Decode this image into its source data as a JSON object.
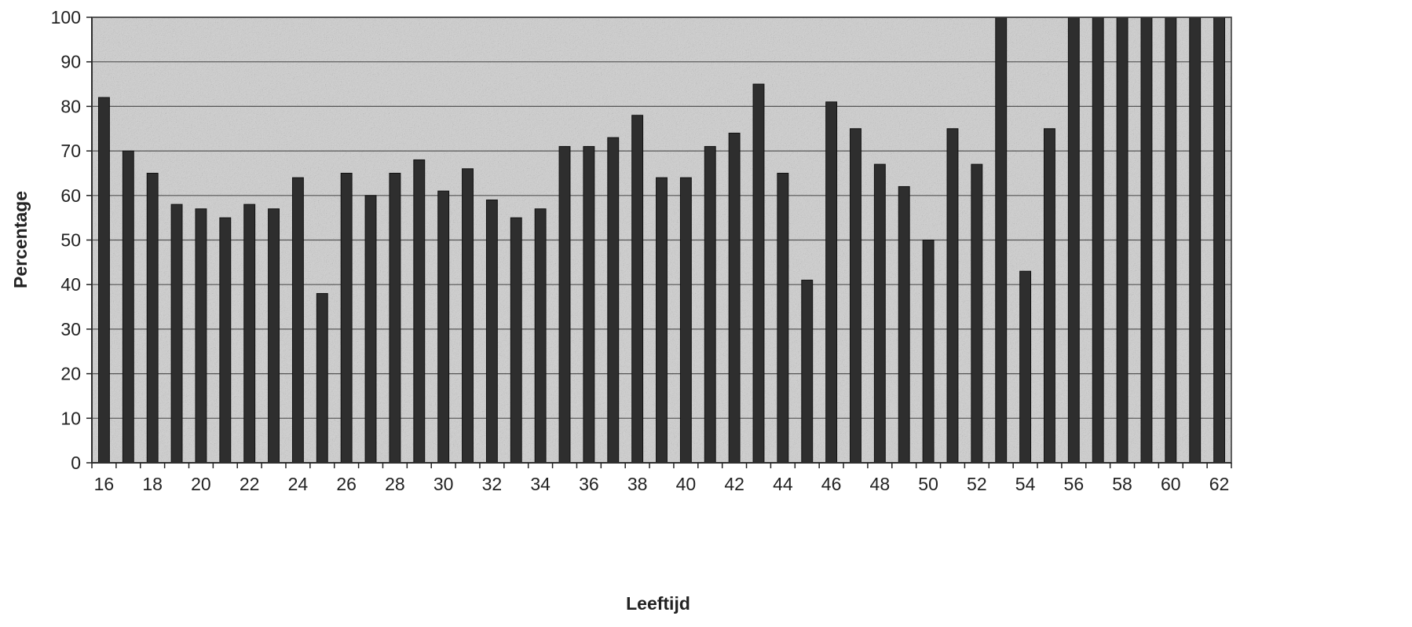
{
  "chart_data": {
    "type": "bar",
    "xlabel": "Leeftijd",
    "ylabel": "Percentage",
    "ylim": [
      0,
      100
    ],
    "yticks": [
      0,
      10,
      20,
      30,
      40,
      50,
      60,
      70,
      80,
      90,
      100
    ],
    "grid": true,
    "legend": "none",
    "categories": [
      16,
      17,
      18,
      19,
      20,
      21,
      22,
      23,
      24,
      25,
      26,
      27,
      28,
      29,
      30,
      31,
      32,
      33,
      34,
      35,
      36,
      37,
      38,
      39,
      40,
      41,
      42,
      43,
      44,
      45,
      46,
      47,
      48,
      49,
      50,
      51,
      52,
      53,
      54,
      55,
      56,
      57,
      58,
      59,
      60,
      61,
      62
    ],
    "xtick_labels": [
      "16",
      "18",
      "20",
      "22",
      "24",
      "26",
      "28",
      "30",
      "32",
      "34",
      "36",
      "38",
      "40",
      "42",
      "44",
      "46",
      "48",
      "50",
      "52",
      "54",
      "56",
      "58",
      "60",
      "62"
    ],
    "values": [
      82,
      70,
      65,
      58,
      57,
      55,
      58,
      57,
      64,
      38,
      65,
      60,
      65,
      68,
      61,
      66,
      59,
      55,
      57,
      71,
      71,
      73,
      78,
      64,
      64,
      71,
      74,
      85,
      65,
      41,
      81,
      75,
      67,
      62,
      50,
      75,
      67,
      100,
      43,
      75,
      100,
      100,
      100,
      100,
      100,
      100,
      100
    ],
    "colors": {
      "plot_background": "#cfcfcf",
      "bar": "#2e2e2e",
      "grid": "#555555",
      "text": "#222222"
    }
  }
}
